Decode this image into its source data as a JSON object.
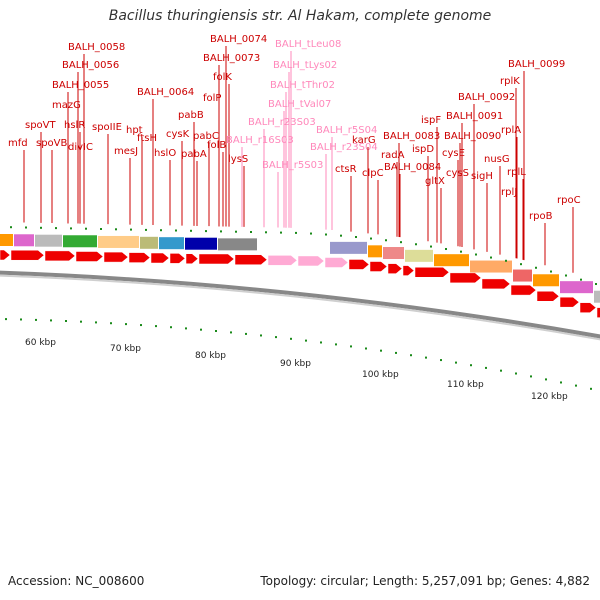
{
  "title": "Bacillus thuringiensis str. Al Hakam, complete genome",
  "accession": "Accession: NC_008600",
  "summary": "Topology: circular; Length: 5,257,091 bp; Genes: 4,882",
  "kbp_labels": [
    "60 kbp",
    "70 kbp",
    "80 kbp",
    "90 kbp",
    "100 kbp",
    "110 kbp",
    "120 kbp"
  ],
  "gene_labels": [
    {
      "text": "mfd",
      "kind": "protein"
    },
    {
      "text": "spoVT",
      "kind": "protein"
    },
    {
      "text": "spoVB",
      "kind": "protein"
    },
    {
      "text": "BALH_0058",
      "kind": "protein"
    },
    {
      "text": "BALH_0056",
      "kind": "protein"
    },
    {
      "text": "BALH_0055",
      "kind": "protein"
    },
    {
      "text": "mazG",
      "kind": "protein"
    },
    {
      "text": "hslR",
      "kind": "protein"
    },
    {
      "text": "divIC",
      "kind": "protein"
    },
    {
      "text": "spoIIE",
      "kind": "protein"
    },
    {
      "text": "hpt",
      "kind": "protein"
    },
    {
      "text": "mesJ",
      "kind": "protein"
    },
    {
      "text": "ftsH",
      "kind": "protein"
    },
    {
      "text": "BALH_0064",
      "kind": "protein"
    },
    {
      "text": "hslO",
      "kind": "protein"
    },
    {
      "text": "cysK",
      "kind": "protein"
    },
    {
      "text": "pabB",
      "kind": "protein"
    },
    {
      "text": "pabA",
      "kind": "protein"
    },
    {
      "text": "pabC",
      "kind": "protein"
    },
    {
      "text": "folB",
      "kind": "protein"
    },
    {
      "text": "folP",
      "kind": "protein"
    },
    {
      "text": "folK",
      "kind": "protein"
    },
    {
      "text": "BALH_0073",
      "kind": "protein"
    },
    {
      "text": "BALH_0074",
      "kind": "protein"
    },
    {
      "text": "lysS",
      "kind": "protein"
    },
    {
      "text": "BALH_r16S03",
      "kind": "rna"
    },
    {
      "text": "BALH_r23S03",
      "kind": "rna"
    },
    {
      "text": "BALH_r5S03",
      "kind": "rna"
    },
    {
      "text": "BALH_tLeu08",
      "kind": "rna"
    },
    {
      "text": "BALH_tLys02",
      "kind": "rna"
    },
    {
      "text": "BALH_tThr02",
      "kind": "rna"
    },
    {
      "text": "BALH_tVal07",
      "kind": "rna"
    },
    {
      "text": "BALH_r5S04",
      "kind": "rna"
    },
    {
      "text": "BALH_r23S04",
      "kind": "rna"
    },
    {
      "text": "ctsR",
      "kind": "protein"
    },
    {
      "text": "karG",
      "kind": "protein"
    },
    {
      "text": "clpC",
      "kind": "protein"
    },
    {
      "text": "radA",
      "kind": "protein"
    },
    {
      "text": "BALH_0083",
      "kind": "protein"
    },
    {
      "text": "BALH_0084",
      "kind": "protein"
    },
    {
      "text": "ispD",
      "kind": "protein"
    },
    {
      "text": "gltX",
      "kind": "protein"
    },
    {
      "text": "ispF",
      "kind": "protein"
    },
    {
      "text": "cysE",
      "kind": "protein"
    },
    {
      "text": "cysS",
      "kind": "protein"
    },
    {
      "text": "BALH_0090",
      "kind": "protein"
    },
    {
      "text": "BALH_0091",
      "kind": "protein"
    },
    {
      "text": "sigH",
      "kind": "protein"
    },
    {
      "text": "nusG",
      "kind": "protein"
    },
    {
      "text": "BALH_0092",
      "kind": "protein"
    },
    {
      "text": "rplK",
      "kind": "protein"
    },
    {
      "text": "rplA",
      "kind": "protein"
    },
    {
      "text": "rplJ",
      "kind": "protein"
    },
    {
      "text": "rplL",
      "kind": "protein"
    },
    {
      "text": "BALH_0099",
      "kind": "protein"
    },
    {
      "text": "rpoB",
      "kind": "protein"
    },
    {
      "text": "rpoC",
      "kind": "protein"
    }
  ],
  "colors": {
    "protein_label": "#cc0000",
    "rna_label": "#ff88bb",
    "forward_gene": "#ee0000",
    "rna_gene": "#ffaad4",
    "backbone": "#888888",
    "tick": "#1a8a1a"
  }
}
